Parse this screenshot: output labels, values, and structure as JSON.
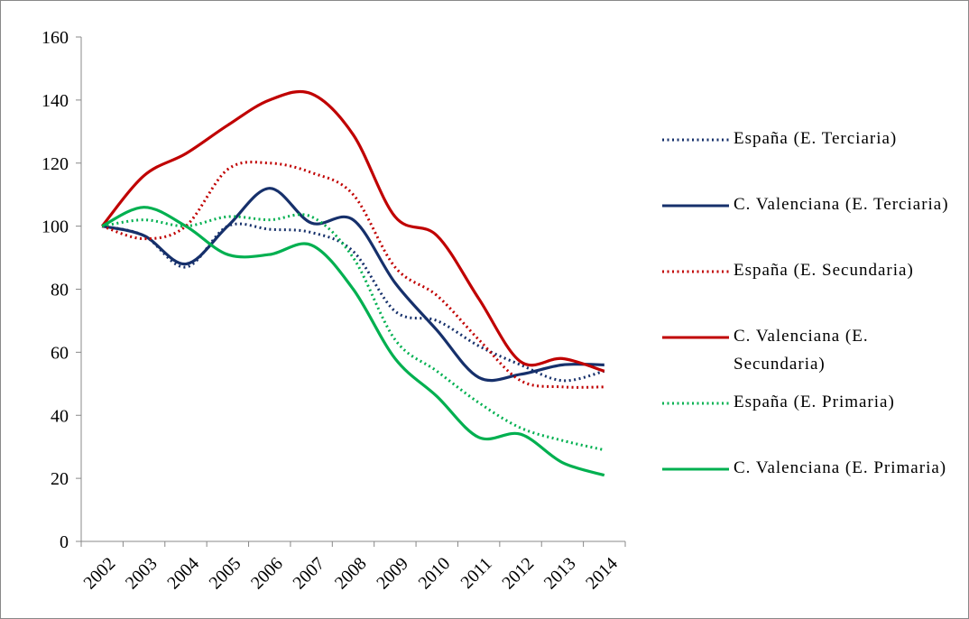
{
  "chart_data": {
    "type": "line",
    "categories": [
      "2002",
      "2003",
      "2004",
      "2005",
      "2006",
      "2007",
      "2008",
      "2009",
      "2010",
      "2011",
      "2012",
      "2013",
      "2014"
    ],
    "ylim": [
      0,
      160
    ],
    "yticks": [
      0,
      20,
      40,
      60,
      80,
      100,
      120,
      140,
      160
    ],
    "grid": false,
    "legend": "right",
    "smooth": true,
    "series": [
      {
        "name": "España (E. Terciaria)",
        "color": "#16306b",
        "style": "dotted",
        "values": [
          100,
          97,
          87,
          100,
          99,
          98,
          92,
          73,
          70,
          62,
          56,
          51,
          54
        ]
      },
      {
        "name": "C. Valenciana (E. Terciaria)",
        "color": "#16306b",
        "style": "solid",
        "values": [
          100,
          97,
          88,
          100,
          112,
          101,
          102,
          82,
          67,
          52,
          53,
          56,
          56
        ]
      },
      {
        "name": "España (E. Secundaria)",
        "color": "#c00000",
        "style": "dotted",
        "values": [
          100,
          96,
          100,
          118,
          120,
          117,
          110,
          87,
          78,
          64,
          51,
          49,
          49
        ]
      },
      {
        "name": "C. Valenciana (E. Secundaria)",
        "color": "#c00000",
        "style": "solid",
        "values": [
          100,
          116,
          123,
          132,
          140,
          142,
          129,
          103,
          97,
          77,
          57,
          58,
          54
        ]
      },
      {
        "name": "España (E. Primaria)",
        "color": "#00b050",
        "style": "dotted",
        "values": [
          100,
          102,
          100,
          103,
          102,
          103,
          90,
          64,
          54,
          44,
          36,
          32,
          29
        ]
      },
      {
        "name": "C. Valenciana (E. Primaria)",
        "color": "#00b050",
        "style": "solid",
        "values": [
          100,
          106,
          100,
          91,
          91,
          94,
          80,
          58,
          46,
          33,
          34,
          25,
          21
        ]
      }
    ]
  }
}
